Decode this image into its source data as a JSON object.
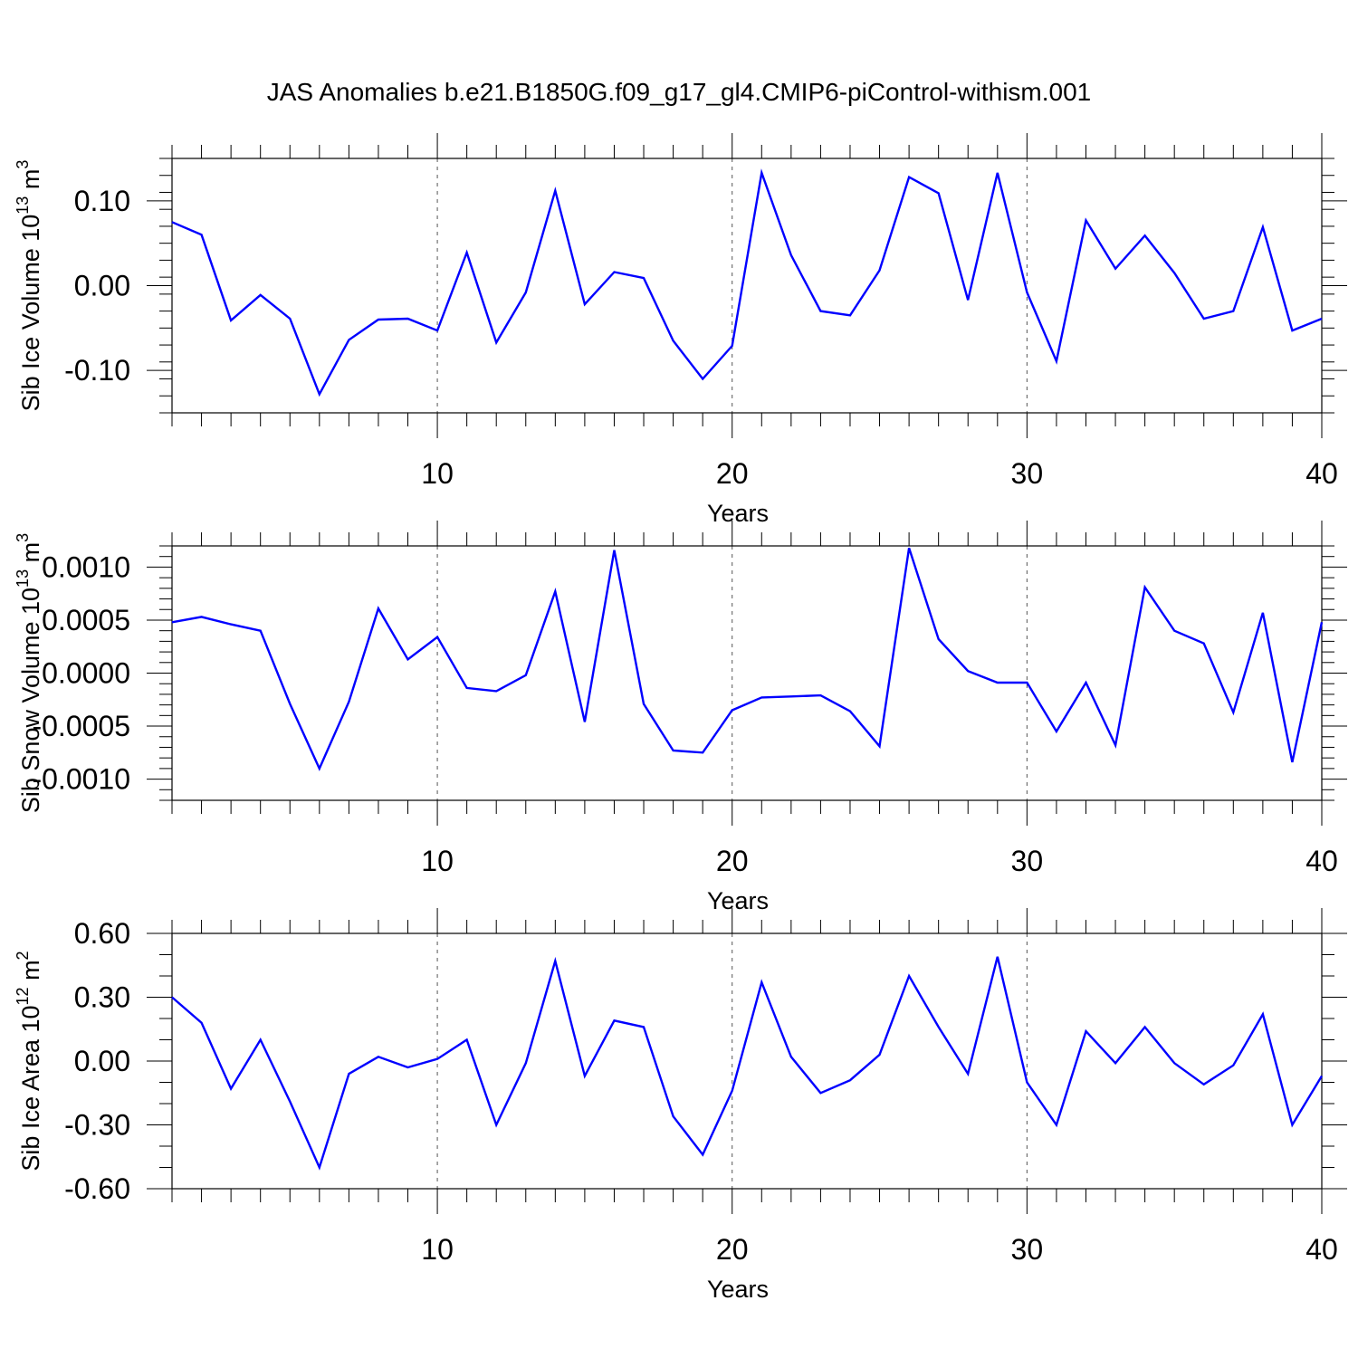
{
  "title": "JAS Anomalies b.e21.B1850G.f09_g17_gl4.CMIP6-piControl-withism.001",
  "colors": {
    "line": "#0000ff",
    "axis": "#000000",
    "grid": "#555555"
  },
  "chart_data": [
    {
      "type": "line",
      "ylabel_parts": [
        "Sib Ice Volume 10",
        "13",
        " m",
        "3"
      ],
      "xlabel": "Years",
      "xlim": [
        1,
        40
      ],
      "ylim": [
        -0.15,
        0.15
      ],
      "xticks": [
        10,
        20,
        30,
        40
      ],
      "xtick_labels": [
        "10",
        "20",
        "30",
        "40"
      ],
      "yticks": [
        -0.1,
        0.0,
        0.1
      ],
      "ytick_labels": [
        "-0.10",
        "0.00",
        "0.10"
      ],
      "yminor_step": 0.02,
      "grid_x": [
        10,
        20,
        30
      ],
      "x": [
        1,
        2,
        3,
        4,
        5,
        6,
        7,
        8,
        9,
        10,
        11,
        12,
        13,
        14,
        15,
        16,
        17,
        18,
        19,
        20,
        21,
        22,
        23,
        24,
        25,
        26,
        27,
        28,
        29,
        30,
        31,
        32,
        33,
        34,
        35,
        36,
        37,
        38,
        39,
        40
      ],
      "values": [
        0.075,
        0.06,
        -0.041,
        -0.011,
        -0.039,
        -0.128,
        -0.064,
        -0.04,
        -0.039,
        -0.053,
        0.039,
        -0.067,
        -0.008,
        0.112,
        -0.022,
        0.016,
        0.009,
        -0.065,
        -0.11,
        -0.071,
        0.133,
        0.036,
        -0.03,
        -0.035,
        0.018,
        0.128,
        0.109,
        -0.017,
        0.133,
        -0.008,
        -0.089,
        0.077,
        0.02,
        0.059,
        0.015,
        -0.039,
        -0.03,
        0.069,
        -0.053,
        -0.039
      ]
    },
    {
      "type": "line",
      "ylabel_parts": [
        "Sib Snow Volume 10",
        "13",
        " m",
        "3"
      ],
      "xlabel": "Years",
      "xlim": [
        1,
        40
      ],
      "ylim": [
        -0.0012,
        0.0012
      ],
      "xticks": [
        10,
        20,
        30,
        40
      ],
      "xtick_labels": [
        "10",
        "20",
        "30",
        "40"
      ],
      "yticks": [
        -0.001,
        -0.0005,
        0.0,
        0.0005,
        0.001
      ],
      "ytick_labels": [
        "-0.0010",
        "-0.0005",
        "0.0000",
        "0.0005",
        "0.0010"
      ],
      "yminor_step": 0.0001,
      "grid_x": [
        10,
        20,
        30
      ],
      "x": [
        1,
        2,
        3,
        4,
        5,
        6,
        7,
        8,
        9,
        10,
        11,
        12,
        13,
        14,
        15,
        16,
        17,
        18,
        19,
        20,
        21,
        22,
        23,
        24,
        25,
        26,
        27,
        28,
        29,
        30,
        31,
        32,
        33,
        34,
        35,
        36,
        37,
        38,
        39,
        40
      ],
      "values": [
        0.00048,
        0.00053,
        0.00046,
        0.0004,
        -0.00029,
        -0.0009,
        -0.00027,
        0.00061,
        0.00013,
        0.00034,
        -0.00014,
        -0.00017,
        -2e-05,
        0.00077,
        -0.00046,
        0.00116,
        -0.00029,
        -0.00073,
        -0.00075,
        -0.00035,
        -0.00023,
        -0.00022,
        -0.00021,
        -0.00036,
        -0.00069,
        0.00118,
        0.00032,
        2e-05,
        -9e-05,
        -9e-05,
        -0.00055,
        -9e-05,
        -0.00068,
        0.00081,
        0.0004,
        0.00028,
        -0.00037,
        0.00057,
        -0.00084,
        0.00048
      ]
    },
    {
      "type": "line",
      "ylabel_parts": [
        "Sib Ice Area 10",
        "12",
        " m",
        "2"
      ],
      "xlabel": "Years",
      "xlim": [
        1,
        40
      ],
      "ylim": [
        -0.6,
        0.6
      ],
      "xticks": [
        10,
        20,
        30,
        40
      ],
      "xtick_labels": [
        "10",
        "20",
        "30",
        "40"
      ],
      "yticks": [
        -0.6,
        -0.3,
        0.0,
        0.3,
        0.6
      ],
      "ytick_labels": [
        "-0.60",
        "-0.30",
        "0.00",
        "0.30",
        "0.60"
      ],
      "yminor_step": 0.1,
      "grid_x": [
        10,
        20,
        30
      ],
      "x": [
        1,
        2,
        3,
        4,
        5,
        6,
        7,
        8,
        9,
        10,
        11,
        12,
        13,
        14,
        15,
        16,
        17,
        18,
        19,
        20,
        21,
        22,
        23,
        24,
        25,
        26,
        27,
        28,
        29,
        30,
        31,
        32,
        33,
        34,
        35,
        36,
        37,
        38,
        39,
        40
      ],
      "values": [
        0.3,
        0.18,
        -0.13,
        0.1,
        -0.19,
        -0.5,
        -0.06,
        0.02,
        -0.03,
        0.01,
        0.1,
        -0.3,
        -0.01,
        0.47,
        -0.07,
        0.19,
        0.16,
        -0.26,
        -0.44,
        -0.14,
        0.37,
        0.02,
        -0.15,
        -0.09,
        0.03,
        0.4,
        0.16,
        -0.06,
        0.49,
        -0.1,
        -0.3,
        0.14,
        -0.01,
        0.16,
        -0.01,
        -0.11,
        -0.02,
        0.22,
        -0.3,
        -0.07
      ]
    }
  ]
}
